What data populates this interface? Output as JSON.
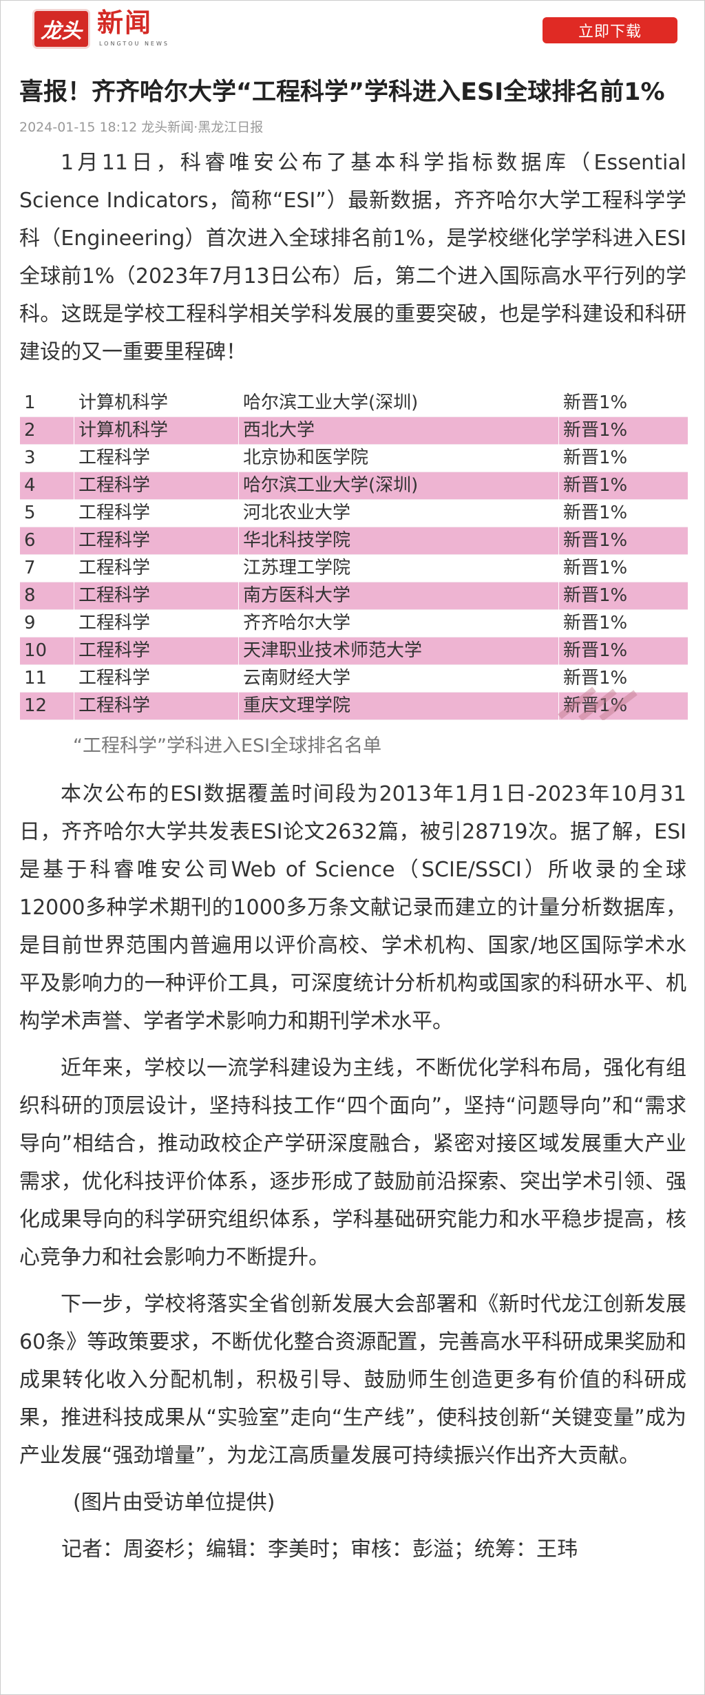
{
  "header": {
    "logo_mark": "龙头",
    "logo_text": "新闻",
    "logo_sub": "LONGTOU NEWS",
    "download_label": "立即下载"
  },
  "article": {
    "title": "喜报！齐齐哈尔大学“工程科学”学科进入ESI全球排名前1%",
    "meta": "2024-01-15 18:12 龙头新闻·黑龙江日报",
    "paragraphs": [
      "1月11日，科睿唯安公布了基本科学指标数据库（Essential Science Indicators，简称“ESI”）最新数据，齐齐哈尔大学工程科学学科（Engineering）首次进入全球排名前1%，是学校继化学学科进入ESI全球前1%（2023年7月13日公布）后，第二个进入国际高水平行列的学科。这既是学校工程科学相关学科发展的重要突破，也是学科建设和科研建设的又一重要里程碑！",
      "本次公布的ESI数据覆盖时间段为2013年1月1日-2023年10月31日，齐齐哈尔大学共发表ESI论文2632篇，被引28719次。据了解，ESI是基于科睿唯安公司Web of Science（SCIE/SSCI）所收录的全球12000多种学术期刊的1000多万条文献记录而建立的计量分析数据库，是目前世界范围内普遍用以评价高校、学术机构、国家/地区国际学术水平及影响力的一种评价工具，可深度统计分析机构或国家的科研水平、机构学术声誉、学者学术影响力和期刊学术水平。",
      "近年来，学校以一流学科建设为主线，不断优化学科布局，强化有组织科研的顶层设计，坚持科技工作“四个面向”，坚持“问题导向”和“需求导向”相结合，推动政校企产学研深度融合，紧密对接区域发展重大产业需求，优化科技评价体系，逐步形成了鼓励前沿探索、突出学术引领、强化成果导向的科学研究组织体系，学科基础研究能力和水平稳步提高，核心竞争力和社会影响力不断提升。",
      "下一步，学校将落实全省创新发展大会部署和《新时代龙江创新发展60条》等政策要求，不断优化整合资源配置，完善高水平科研成果奖励和成果转化收入分配机制，积极引导、鼓励师生创造更多有价值的科研成果，推进科技成果从“实验室”走向“生产线”，使科技创新“关键变量”成为产业发展“强劲增量”，为龙江高质量发展可持续振兴作出齐大贡献。"
    ],
    "table_rows": [
      [
        "1",
        "计算机科学",
        "哈尔滨工业大学(深圳)",
        "新晋1%"
      ],
      [
        "2",
        "计算机科学",
        "西北大学",
        "新晋1%"
      ],
      [
        "3",
        "工程科学",
        "北京协和医学院",
        "新晋1%"
      ],
      [
        "4",
        "工程科学",
        "哈尔滨工业大学(深圳)",
        "新晋1%"
      ],
      [
        "5",
        "工程科学",
        "河北农业大学",
        "新晋1%"
      ],
      [
        "6",
        "工程科学",
        "华北科技学院",
        "新晋1%"
      ],
      [
        "7",
        "工程科学",
        "江苏理工学院",
        "新晋1%"
      ],
      [
        "8",
        "工程科学",
        "南方医科大学",
        "新晋1%"
      ],
      [
        "9",
        "工程科学",
        "齐齐哈尔大学",
        "新晋1%"
      ],
      [
        "10",
        "工程科学",
        "天津职业技术师范大学",
        "新晋1%"
      ],
      [
        "11",
        "工程科学",
        "云南财经大学",
        "新晋1%"
      ],
      [
        "12",
        "工程科学",
        "重庆文理学院",
        "新晋1%"
      ]
    ],
    "table_highlight_color": "#eeb4d2",
    "caption": "“工程科学”学科进入ESI全球排名名单",
    "photo_credit": "(图片由受访单位提供)",
    "credits": "记者：周姿杉；编辑：李美时；审核：彭溢；统筹：王玮"
  },
  "colors": {
    "brand": "#d42a25",
    "button": "#e02a24"
  }
}
